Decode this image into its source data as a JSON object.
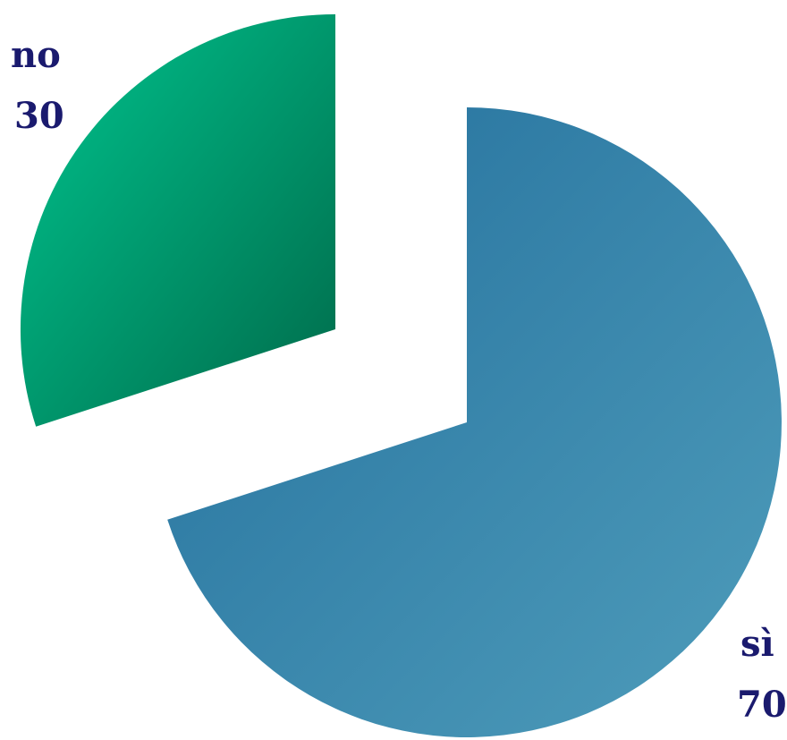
{
  "chart_data": {
    "type": "pie",
    "categories": [
      "sì",
      "no"
    ],
    "values": [
      70,
      30
    ],
    "colors": {
      "sì": [
        "#236f9c",
        "#4f9dbb"
      ],
      "no": [
        "#00c58f",
        "#006a4a"
      ]
    },
    "exploded": [
      "sì",
      "no"
    ],
    "label_color": "#1a1a6e",
    "legend": "none",
    "labels": [
      {
        "category": "sì",
        "value": "70"
      },
      {
        "category": "no",
        "value": "30"
      }
    ]
  }
}
